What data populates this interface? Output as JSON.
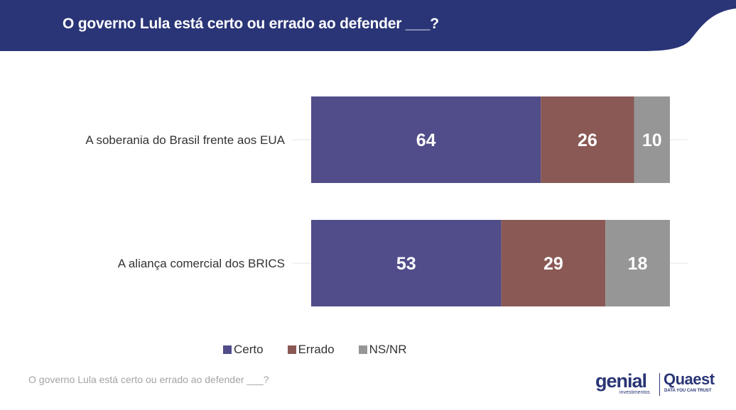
{
  "header": {
    "title": "O governo Lula está certo ou errado ao defender ___?",
    "bg_color": "#2a3577"
  },
  "chart_data": {
    "type": "bar",
    "orientation": "horizontal",
    "stacked": true,
    "categories": [
      "A soberania do Brasil frente aos EUA",
      "A aliança comercial dos BRICS"
    ],
    "series": [
      {
        "name": "Certo",
        "values": [
          64,
          53
        ],
        "color": "#504d8a"
      },
      {
        "name": "Errado",
        "values": [
          26,
          29
        ],
        "color": "#8a5955"
      },
      {
        "name": "NS/NR",
        "values": [
          10,
          18
        ],
        "color": "#969696"
      }
    ],
    "xlim": [
      0,
      100
    ],
    "data_labels": true,
    "legend_position": "bottom",
    "grid": false
  },
  "footnote": "O governo Lula está certo ou errado ao defender ___?",
  "logos": {
    "genial": "genial",
    "genial_sub": "investimentos",
    "quaest": "Quaest",
    "quaest_sub": "DATA YOU CAN TRUST"
  }
}
